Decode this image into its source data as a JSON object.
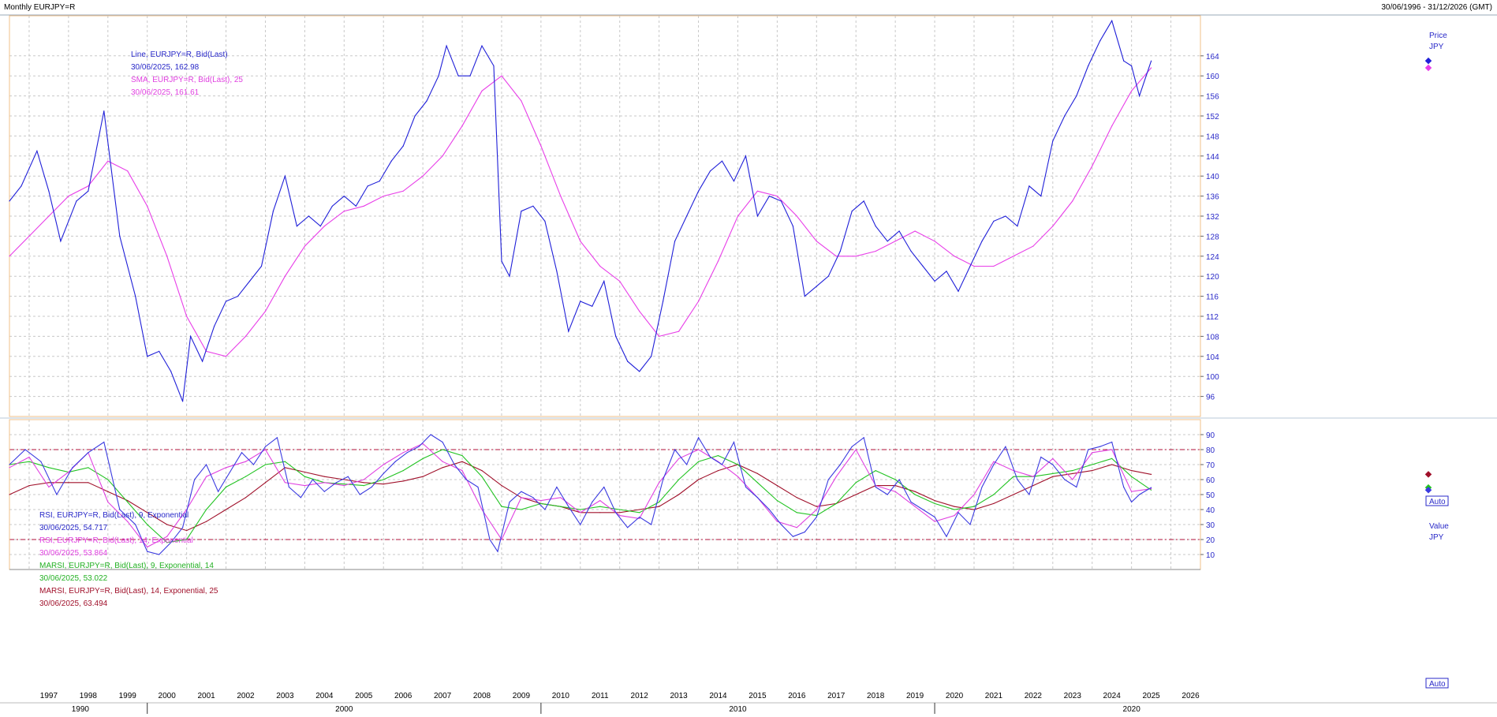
{
  "header": {
    "title": "Monthly EURJPY=R",
    "date_range": "30/06/1996 - 31/12/2026 (GMT)"
  },
  "colors": {
    "price_line": "#1f1fd8",
    "sma_line": "#e83ee8",
    "rsi9": "#3a3ae0",
    "rsi14": "#e040e0",
    "marsi9": "#22c322",
    "marsi14": "#a0102a",
    "grid": "#c8c8c8",
    "ref_line": "#b0103a",
    "frame": "#f0c08a"
  },
  "upper_panel": {
    "axis_title": "Price",
    "axis_unit": "JPY",
    "auto_label": "Auto",
    "legend": [
      {
        "text": "Line, EURJPY=R, Bid(Last)",
        "color": "#2828c8"
      },
      {
        "text": "30/06/2025, 162.98",
        "color": "#2828c8"
      },
      {
        "text": "SMA, EURJPY=R, Bid(Last),  25",
        "color": "#e040e0"
      },
      {
        "text": "30/06/2025, 161.61",
        "color": "#e040e0"
      }
    ]
  },
  "lower_panel": {
    "axis_title": "Value",
    "axis_unit": "JPY",
    "auto_label": "Auto",
    "legend": [
      {
        "text": "RSI, EURJPY=R, Bid(Last),  9, Exponential",
        "color": "#2828c8"
      },
      {
        "text": "30/06/2025, 54.717",
        "color": "#2828c8"
      },
      {
        "text": "RSI, EURJPY=R, Bid(Last),  14, Exponential",
        "color": "#e040e0"
      },
      {
        "text": "30/06/2025, 53.864",
        "color": "#e040e0"
      },
      {
        "text": "MARSI, EURJPY=R, Bid(Last),  9, Exponential, 14",
        "color": "#22b022"
      },
      {
        "text": "30/06/2025, 53.022",
        "color": "#22b022"
      },
      {
        "text": "MARSI, EURJPY=R, Bid(Last),  14, Exponential, 25",
        "color": "#a0102a"
      },
      {
        "text": "30/06/2025, 63.494",
        "color": "#a0102a"
      }
    ]
  },
  "chart_data": [
    {
      "type": "line",
      "panel": "price",
      "ylim": [
        92,
        172
      ],
      "y_ticks": [
        "96",
        "100",
        "104",
        "108",
        "112",
        "116",
        "120",
        "124",
        "128",
        "132",
        "136",
        "140",
        "144",
        "148",
        "152",
        "156",
        "160",
        "164"
      ],
      "x_year_labels": [
        "1997",
        "1998",
        "1999",
        "2000",
        "2001",
        "2002",
        "2003",
        "2004",
        "2005",
        "2006",
        "2007",
        "2008",
        "2009",
        "2010",
        "2011",
        "2012",
        "2013",
        "2014",
        "2015",
        "2016",
        "2017",
        "2018",
        "2019",
        "2020",
        "2021",
        "2022",
        "2023",
        "2024",
        "2025",
        "2026"
      ],
      "x_decade_labels": [
        "1990",
        "2000",
        "2010",
        "2020"
      ],
      "series": [
        {
          "name": "Line, EURJPY=R, Bid(Last)",
          "x": [
            1996.5,
            1996.8,
            1997.2,
            1997.5,
            1997.8,
            1998.2,
            1998.5,
            1998.9,
            1999.3,
            1999.7,
            2000.0,
            2000.3,
            2000.6,
            2000.9,
            2001.1,
            2001.4,
            2001.7,
            2002.0,
            2002.3,
            2002.6,
            2002.9,
            2003.2,
            2003.5,
            2003.8,
            2004.1,
            2004.4,
            2004.7,
            2005.0,
            2005.3,
            2005.6,
            2005.9,
            2006.2,
            2006.5,
            2006.8,
            2007.1,
            2007.4,
            2007.6,
            2007.9,
            2008.2,
            2008.5,
            2008.8,
            2009.0,
            2009.2,
            2009.5,
            2009.8,
            2010.1,
            2010.4,
            2010.7,
            2011.0,
            2011.3,
            2011.6,
            2011.9,
            2012.2,
            2012.5,
            2012.8,
            2013.1,
            2013.4,
            2013.7,
            2014.0,
            2014.3,
            2014.6,
            2014.9,
            2015.2,
            2015.5,
            2015.8,
            2016.1,
            2016.4,
            2016.7,
            2017.0,
            2017.3,
            2017.6,
            2017.9,
            2018.2,
            2018.5,
            2018.8,
            2019.1,
            2019.4,
            2019.7,
            2020.0,
            2020.3,
            2020.6,
            2020.9,
            2021.2,
            2021.5,
            2021.8,
            2022.1,
            2022.4,
            2022.7,
            2023.0,
            2023.3,
            2023.6,
            2023.9,
            2024.2,
            2024.5,
            2024.8,
            2025.0,
            2025.2,
            2025.5
          ],
          "values": [
            135,
            138,
            145,
            137,
            127,
            135,
            137,
            153,
            128,
            116,
            104,
            105,
            101,
            95,
            108,
            103,
            110,
            115,
            116,
            119,
            122,
            133,
            140,
            130,
            132,
            130,
            134,
            136,
            134,
            138,
            139,
            143,
            146,
            152,
            155,
            160,
            166,
            160,
            160,
            166,
            162,
            123,
            120,
            133,
            134,
            131,
            121,
            109,
            115,
            114,
            119,
            108,
            103,
            101,
            104,
            115,
            127,
            132,
            137,
            141,
            143,
            139,
            144,
            132,
            136,
            135,
            130,
            116,
            118,
            120,
            125,
            133,
            135,
            130,
            127,
            129,
            125,
            122,
            119,
            121,
            117,
            122,
            127,
            131,
            132,
            130,
            138,
            136,
            147,
            152,
            156,
            162,
            167,
            171,
            163,
            162,
            156,
            163
          ]
        },
        {
          "name": "SMA, EURJPY=R, Bid(Last),  25",
          "x": [
            1996.5,
            1997.0,
            1997.5,
            1998.0,
            1998.5,
            1999.0,
            1999.5,
            2000.0,
            2000.5,
            2001.0,
            2001.5,
            2002.0,
            2002.5,
            2003.0,
            2003.5,
            2004.0,
            2004.5,
            2005.0,
            2005.5,
            2006.0,
            2006.5,
            2007.0,
            2007.5,
            2008.0,
            2008.5,
            2009.0,
            2009.5,
            2010.0,
            2010.5,
            2011.0,
            2011.5,
            2012.0,
            2012.5,
            2013.0,
            2013.5,
            2014.0,
            2014.5,
            2015.0,
            2015.5,
            2016.0,
            2016.5,
            2017.0,
            2017.5,
            2018.0,
            2018.5,
            2019.0,
            2019.5,
            2020.0,
            2020.5,
            2021.0,
            2021.5,
            2022.0,
            2022.5,
            2023.0,
            2023.5,
            2024.0,
            2024.5,
            2025.0,
            2025.5
          ],
          "values": [
            124,
            128,
            132,
            136,
            138,
            143,
            141,
            134,
            124,
            112,
            105,
            104,
            108,
            113,
            120,
            126,
            130,
            133,
            134,
            136,
            137,
            140,
            144,
            150,
            157,
            160,
            155,
            146,
            136,
            127,
            122,
            119,
            113,
            108,
            109,
            115,
            123,
            132,
            137,
            136,
            132,
            127,
            124,
            124,
            125,
            127,
            129,
            127,
            124,
            122,
            122,
            124,
            126,
            130,
            135,
            142,
            150,
            157,
            161.6
          ]
        }
      ]
    },
    {
      "type": "line",
      "panel": "rsi",
      "ylim": [
        0,
        100
      ],
      "y_ticks": [
        "10",
        "20",
        "30",
        "40",
        "50",
        "60",
        "70",
        "80",
        "90"
      ],
      "reference_lines": [
        80,
        20
      ],
      "series": [
        {
          "name": "RSI, EURJPY=R, Bid(Last),  9, Exponential",
          "x": [
            1996.5,
            1996.9,
            1997.3,
            1997.7,
            1998.1,
            1998.5,
            1998.9,
            1999.3,
            1999.7,
            2000.0,
            2000.3,
            2000.6,
            2000.9,
            2001.2,
            2001.5,
            2001.8,
            2002.1,
            2002.4,
            2002.7,
            2003.0,
            2003.3,
            2003.6,
            2003.9,
            2004.2,
            2004.5,
            2004.8,
            2005.1,
            2005.4,
            2005.7,
            2006.0,
            2006.3,
            2006.6,
            2006.9,
            2007.2,
            2007.5,
            2007.8,
            2008.1,
            2008.4,
            2008.7,
            2008.9,
            2009.2,
            2009.5,
            2009.8,
            2010.1,
            2010.4,
            2010.7,
            2011.0,
            2011.3,
            2011.6,
            2011.9,
            2012.2,
            2012.5,
            2012.8,
            2013.1,
            2013.4,
            2013.7,
            2014.0,
            2014.3,
            2014.6,
            2014.9,
            2015.2,
            2015.5,
            2015.8,
            2016.1,
            2016.4,
            2016.7,
            2017.0,
            2017.3,
            2017.6,
            2017.9,
            2018.2,
            2018.5,
            2018.8,
            2019.1,
            2019.4,
            2019.7,
            2020.0,
            2020.3,
            2020.6,
            2020.9,
            2021.2,
            2021.5,
            2021.8,
            2022.1,
            2022.4,
            2022.7,
            2023.0,
            2023.3,
            2023.6,
            2023.9,
            2024.2,
            2024.5,
            2024.8,
            2025.0,
            2025.2,
            2025.5
          ],
          "values": [
            70,
            80,
            72,
            50,
            68,
            78,
            85,
            40,
            30,
            12,
            10,
            18,
            28,
            60,
            70,
            52,
            65,
            78,
            70,
            82,
            88,
            55,
            48,
            60,
            52,
            58,
            62,
            50,
            55,
            64,
            72,
            78,
            82,
            90,
            85,
            70,
            60,
            55,
            20,
            12,
            45,
            52,
            48,
            40,
            55,
            42,
            30,
            45,
            55,
            38,
            28,
            35,
            30,
            60,
            80,
            70,
            88,
            75,
            70,
            85,
            55,
            48,
            40,
            30,
            22,
            25,
            35,
            60,
            70,
            82,
            88,
            55,
            50,
            60,
            45,
            40,
            35,
            22,
            38,
            30,
            55,
            70,
            82,
            60,
            50,
            75,
            70,
            60,
            55,
            80,
            82,
            85,
            55,
            45,
            50,
            54.7
          ]
        },
        {
          "name": "RSI, EURJPY=R, Bid(Last),  14, Exponential",
          "x": [
            1996.5,
            1997.0,
            1997.5,
            1998.0,
            1998.5,
            1999.0,
            1999.5,
            2000.0,
            2000.5,
            2001.0,
            2001.5,
            2002.0,
            2002.5,
            2003.0,
            2003.5,
            2004.0,
            2004.5,
            2005.0,
            2005.5,
            2006.0,
            2006.5,
            2007.0,
            2007.5,
            2008.0,
            2008.5,
            2009.0,
            2009.5,
            2010.0,
            2010.5,
            2011.0,
            2011.5,
            2012.0,
            2012.5,
            2013.0,
            2013.5,
            2014.0,
            2014.5,
            2015.0,
            2015.5,
            2016.0,
            2016.5,
            2017.0,
            2017.5,
            2018.0,
            2018.5,
            2019.0,
            2019.5,
            2020.0,
            2020.5,
            2021.0,
            2021.5,
            2022.0,
            2022.5,
            2023.0,
            2023.5,
            2024.0,
            2024.5,
            2025.0,
            2025.5
          ],
          "values": [
            68,
            75,
            55,
            65,
            78,
            45,
            32,
            15,
            22,
            40,
            62,
            68,
            72,
            80,
            58,
            56,
            58,
            56,
            60,
            70,
            78,
            84,
            72,
            66,
            40,
            20,
            48,
            46,
            48,
            38,
            46,
            36,
            34,
            58,
            74,
            80,
            72,
            62,
            48,
            32,
            28,
            40,
            62,
            80,
            56,
            52,
            42,
            32,
            36,
            50,
            72,
            66,
            62,
            74,
            60,
            78,
            80,
            52,
            53.9
          ]
        },
        {
          "name": "MARSI, EURJPY=R, Bid(Last),  9, Exponential, 14",
          "x": [
            1996.5,
            1997.0,
            1997.5,
            1998.0,
            1998.5,
            1999.0,
            1999.5,
            2000.0,
            2000.5,
            2001.0,
            2001.5,
            2002.0,
            2002.5,
            2003.0,
            2003.5,
            2004.0,
            2004.5,
            2005.0,
            2005.5,
            2006.0,
            2006.5,
            2007.0,
            2007.5,
            2008.0,
            2008.5,
            2009.0,
            2009.5,
            2010.0,
            2010.5,
            2011.0,
            2011.5,
            2012.0,
            2012.5,
            2013.0,
            2013.5,
            2014.0,
            2014.5,
            2015.0,
            2015.5,
            2016.0,
            2016.5,
            2017.0,
            2017.5,
            2018.0,
            2018.5,
            2019.0,
            2019.5,
            2020.0,
            2020.5,
            2021.0,
            2021.5,
            2022.0,
            2022.5,
            2023.0,
            2023.5,
            2024.0,
            2024.5,
            2025.0,
            2025.5
          ],
          "values": [
            70,
            72,
            68,
            65,
            68,
            60,
            45,
            30,
            18,
            20,
            40,
            55,
            62,
            70,
            72,
            62,
            58,
            57,
            56,
            60,
            66,
            74,
            80,
            76,
            62,
            42,
            40,
            44,
            42,
            40,
            42,
            40,
            38,
            45,
            60,
            72,
            76,
            70,
            58,
            46,
            38,
            36,
            44,
            58,
            66,
            60,
            50,
            44,
            40,
            42,
            50,
            62,
            62,
            64,
            66,
            70,
            74,
            62,
            53
          ]
        },
        {
          "name": "MARSI, EURJPY=R, Bid(Last),  14, Exponential, 25",
          "x": [
            1996.5,
            1997.0,
            1997.5,
            1998.0,
            1998.5,
            1999.0,
            1999.5,
            2000.0,
            2000.5,
            2001.0,
            2001.5,
            2002.0,
            2002.5,
            2003.0,
            2003.5,
            2004.0,
            2004.5,
            2005.0,
            2005.5,
            2006.0,
            2006.5,
            2007.0,
            2007.5,
            2008.0,
            2008.5,
            2009.0,
            2009.5,
            2010.0,
            2010.5,
            2011.0,
            2011.5,
            2012.0,
            2012.5,
            2013.0,
            2013.5,
            2014.0,
            2014.5,
            2015.0,
            2015.5,
            2016.0,
            2016.5,
            2017.0,
            2017.5,
            2018.0,
            2018.5,
            2019.0,
            2019.5,
            2020.0,
            2020.5,
            2021.0,
            2021.5,
            2022.0,
            2022.5,
            2023.0,
            2023.5,
            2024.0,
            2024.5,
            2025.0,
            2025.5
          ],
          "values": [
            50,
            56,
            58,
            58,
            58,
            52,
            46,
            38,
            30,
            26,
            32,
            40,
            48,
            58,
            68,
            65,
            62,
            60,
            58,
            57,
            59,
            62,
            68,
            72,
            66,
            56,
            48,
            44,
            42,
            38,
            38,
            38,
            40,
            42,
            50,
            60,
            66,
            70,
            64,
            56,
            48,
            42,
            44,
            50,
            56,
            56,
            52,
            46,
            42,
            40,
            44,
            50,
            56,
            62,
            64,
            66,
            70,
            66,
            63.5
          ]
        }
      ]
    }
  ]
}
